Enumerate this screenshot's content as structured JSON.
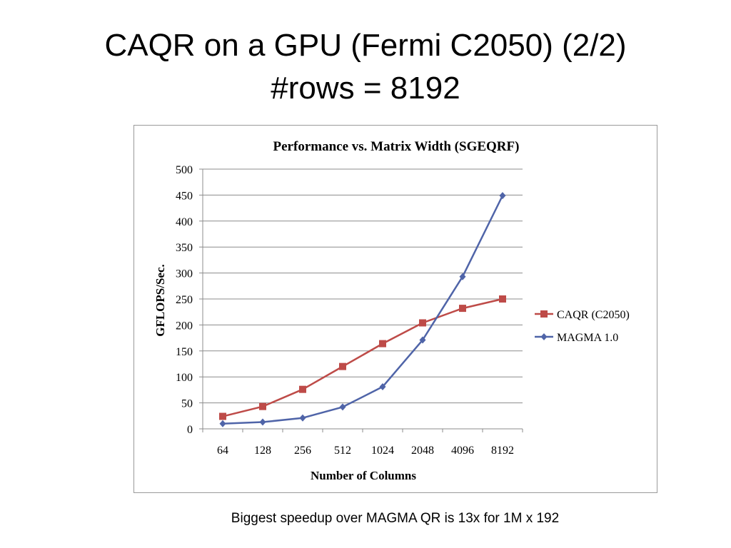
{
  "slide": {
    "title_line1": "CAQR on a GPU (Fermi C2050) (2/2)",
    "title_line2": "#rows = 8192",
    "caption": "Biggest speedup over MAGMA QR is 13x for 1M x 192"
  },
  "chart_data": {
    "type": "line",
    "title": "Performance vs. Matrix Width (SGEQRF)",
    "xlabel": "Number of Columns",
    "ylabel": "GFLOPS/Sec.",
    "categories": [
      "64",
      "128",
      "256",
      "512",
      "1024",
      "2048",
      "4096",
      "8192"
    ],
    "ylim": [
      0,
      500
    ],
    "yticks": [
      0,
      50,
      100,
      150,
      200,
      250,
      300,
      350,
      400,
      450,
      500
    ],
    "grid": true,
    "legend_position": "right",
    "series": [
      {
        "name": "CAQR (C2050)",
        "color": "#be4b48",
        "marker": "square",
        "values": [
          24,
          43,
          76,
          120,
          164,
          204,
          232,
          250
        ]
      },
      {
        "name": "MAGMA 1.0",
        "color": "#4f64a8",
        "marker": "diamond",
        "values": [
          10,
          13,
          21,
          42,
          81,
          171,
          293,
          449
        ]
      }
    ]
  }
}
